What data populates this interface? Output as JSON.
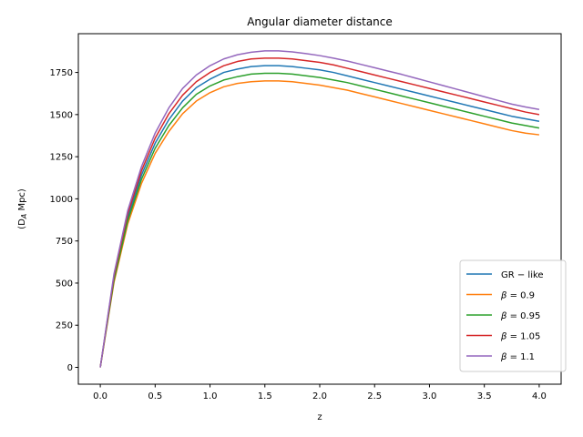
{
  "chart_data": {
    "type": "line",
    "title": "Angular diameter distance",
    "xlabel": "z",
    "ylabel": "(D_A Mpc)",
    "xlim": [
      -0.2,
      4.2
    ],
    "ylim": [
      -100,
      1980
    ],
    "xticks": [
      0.0,
      0.5,
      1.0,
      1.5,
      2.0,
      2.5,
      3.0,
      3.5,
      4.0
    ],
    "xtick_labels": [
      "0.0",
      "0.5",
      "1.0",
      "1.5",
      "2.0",
      "2.5",
      "3.0",
      "3.5",
      "4.0"
    ],
    "yticks": [
      0,
      250,
      500,
      750,
      1000,
      1250,
      1500,
      1750
    ],
    "ytick_labels": [
      "0",
      "250",
      "500",
      "750",
      "1000",
      "1250",
      "1500",
      "1750"
    ],
    "grid": false,
    "legend_position": "lower-right",
    "x": [
      0.0,
      0.125,
      0.25,
      0.375,
      0.5,
      0.625,
      0.75,
      0.875,
      1.0,
      1.125,
      1.25,
      1.375,
      1.5,
      1.625,
      1.75,
      1.875,
      2.0,
      2.125,
      2.25,
      2.375,
      2.5,
      2.625,
      2.75,
      2.875,
      3.0,
      3.125,
      3.25,
      3.375,
      3.5,
      3.625,
      3.75,
      3.875,
      4.0
    ],
    "series": [
      {
        "name": "GR − like",
        "color": "#1f77b4",
        "values": [
          0,
          530,
          890,
          1140,
          1330,
          1470,
          1580,
          1660,
          1710,
          1750,
          1770,
          1785,
          1790,
          1790,
          1785,
          1775,
          1765,
          1750,
          1730,
          1710,
          1690,
          1670,
          1650,
          1630,
          1610,
          1590,
          1570,
          1550,
          1530,
          1510,
          1490,
          1475,
          1460
        ]
      },
      {
        "name": "β = 0.9",
        "color": "#ff7f0e",
        "values": [
          0,
          505,
          850,
          1090,
          1270,
          1400,
          1505,
          1580,
          1630,
          1665,
          1685,
          1695,
          1700,
          1700,
          1695,
          1685,
          1675,
          1660,
          1645,
          1625,
          1605,
          1585,
          1565,
          1545,
          1525,
          1505,
          1485,
          1465,
          1445,
          1425,
          1405,
          1390,
          1380
        ]
      },
      {
        "name": "β = 0.95",
        "color": "#2ca02c",
        "values": [
          0,
          518,
          870,
          1115,
          1300,
          1435,
          1540,
          1620,
          1670,
          1705,
          1725,
          1740,
          1745,
          1745,
          1740,
          1730,
          1720,
          1705,
          1690,
          1670,
          1650,
          1630,
          1610,
          1590,
          1570,
          1550,
          1530,
          1510,
          1490,
          1470,
          1450,
          1435,
          1420
        ]
      },
      {
        "name": "β = 1.05",
        "color": "#d62728",
        "values": [
          0,
          542,
          910,
          1165,
          1360,
          1505,
          1615,
          1695,
          1750,
          1790,
          1815,
          1830,
          1835,
          1835,
          1830,
          1820,
          1810,
          1795,
          1775,
          1755,
          1735,
          1715,
          1695,
          1675,
          1655,
          1635,
          1615,
          1595,
          1575,
          1555,
          1535,
          1515,
          1500
        ]
      },
      {
        "name": "β = 1.1",
        "color": "#9467bd",
        "values": [
          0,
          555,
          930,
          1190,
          1390,
          1540,
          1655,
          1735,
          1790,
          1830,
          1855,
          1870,
          1878,
          1878,
          1872,
          1862,
          1850,
          1835,
          1818,
          1798,
          1778,
          1758,
          1738,
          1716,
          1694,
          1672,
          1650,
          1628,
          1606,
          1584,
          1562,
          1545,
          1530
        ]
      }
    ]
  }
}
